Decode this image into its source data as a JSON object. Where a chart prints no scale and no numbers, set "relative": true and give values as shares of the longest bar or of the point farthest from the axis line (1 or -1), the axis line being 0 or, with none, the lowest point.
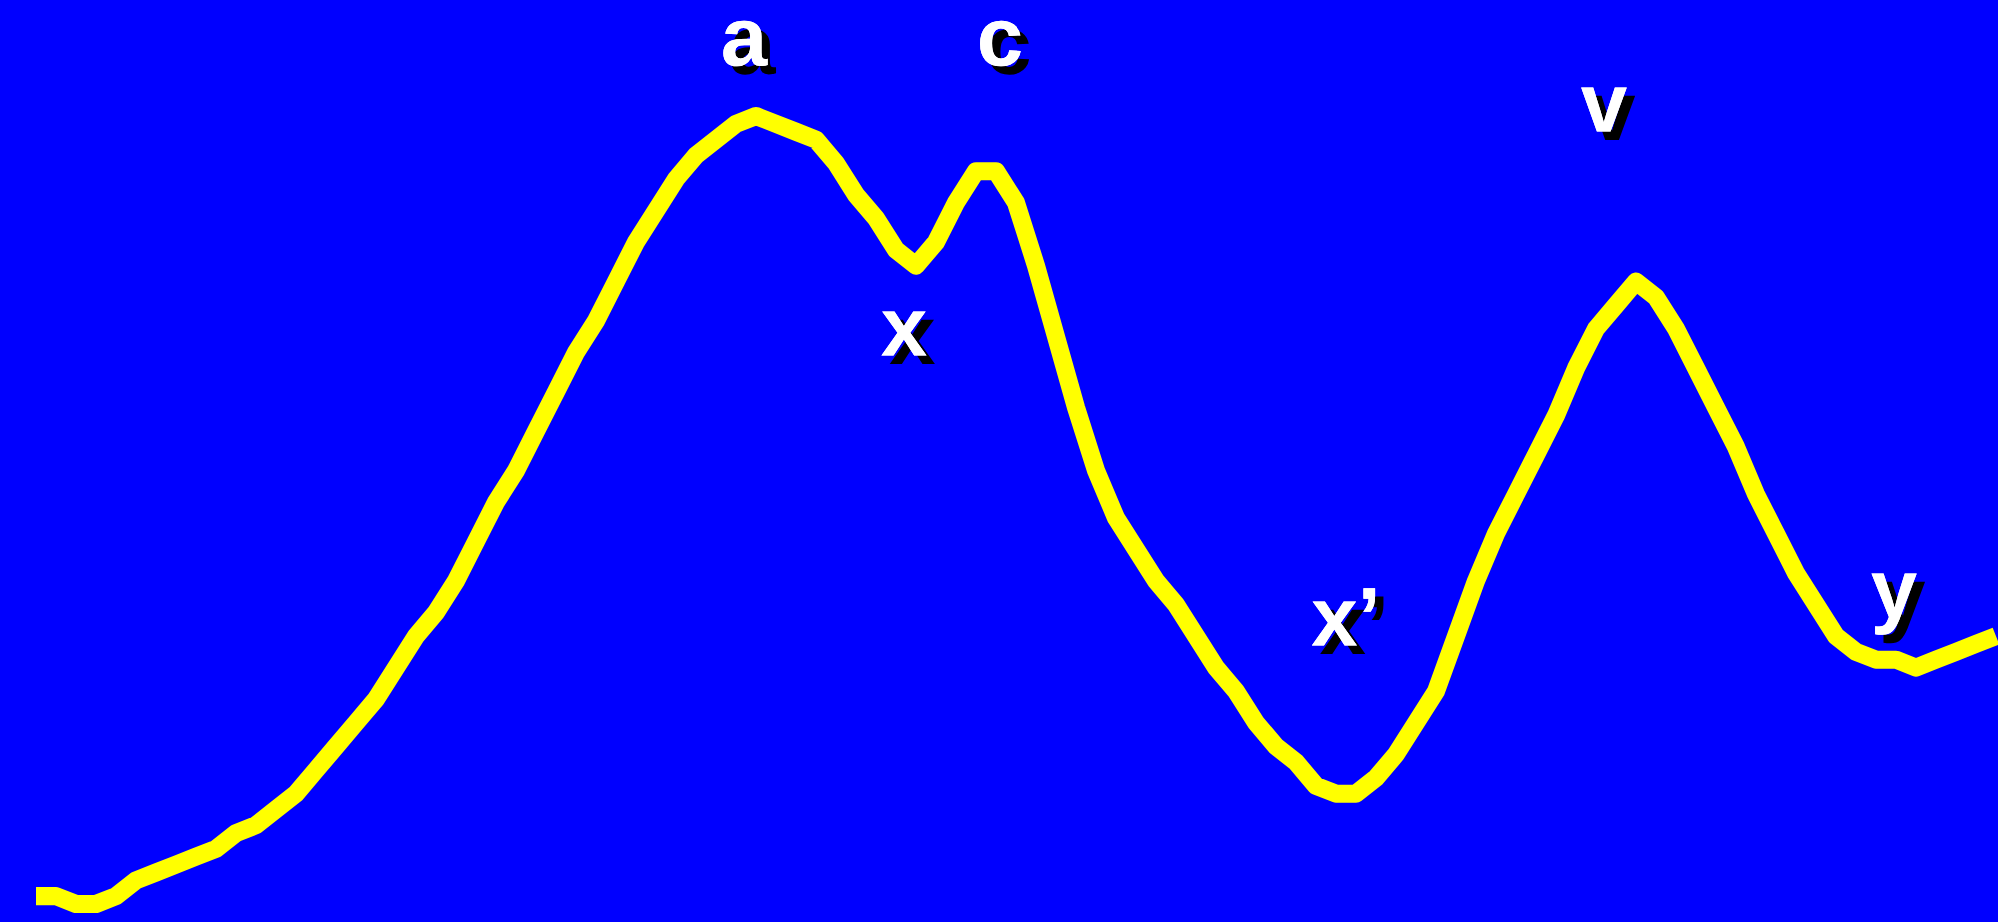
{
  "chart_data": {
    "type": "line",
    "relative": true,
    "categories": [
      null,
      null,
      null,
      null,
      null,
      null,
      null,
      null,
      null,
      null,
      null,
      null,
      null,
      null,
      null,
      null,
      null,
      null,
      null,
      null,
      null,
      null,
      null,
      null,
      null,
      null,
      null,
      null,
      null,
      null,
      null,
      null,
      null,
      null,
      null,
      null,
      null,
      null,
      null,
      null,
      null,
      null,
      null,
      null,
      null,
      null,
      null,
      null,
      null,
      null,
      null,
      null,
      null,
      null,
      null,
      null,
      null,
      null,
      null,
      null,
      null,
      null,
      null,
      null,
      null,
      null,
      null,
      null,
      null,
      null,
      null,
      null,
      null,
      null,
      null,
      null,
      null,
      null,
      null,
      null,
      null,
      null,
      null,
      null,
      null,
      null,
      null,
      null,
      null,
      null,
      null,
      null,
      null,
      null,
      null,
      null,
      null,
      null,
      null
    ],
    "series": [
      {
        "color": "#ffff00",
        "values": [
          0.01,
          0.01,
          0.0,
          0.0,
          0.01,
          0.03,
          0.04,
          0.05,
          0.06,
          0.07,
          0.09,
          0.1,
          0.12,
          0.14,
          0.17,
          0.2,
          0.23,
          0.26,
          0.3,
          0.34,
          0.37,
          0.41,
          0.46,
          0.51,
          0.55,
          0.6,
          0.65,
          0.7,
          0.74,
          0.79,
          0.84,
          0.88,
          0.92,
          0.95,
          0.97,
          0.99,
          1.0,
          0.99,
          0.98,
          0.97,
          0.94,
          0.9,
          0.87,
          0.83,
          0.81,
          0.84,
          0.89,
          0.93,
          0.93,
          0.89,
          0.81,
          0.72,
          0.63,
          0.55,
          0.49,
          0.45,
          0.41,
          0.38,
          0.34,
          0.3,
          0.27,
          0.23,
          0.2,
          0.18,
          0.15,
          0.14,
          0.14,
          0.16,
          0.19,
          0.23,
          0.27,
          0.34,
          0.41,
          0.47,
          0.52,
          0.57,
          0.62,
          0.68,
          0.73,
          0.76,
          0.79,
          0.77,
          0.73,
          0.68,
          0.63,
          0.58,
          0.52,
          0.47,
          0.42,
          0.38,
          0.34,
          0.32,
          0.31,
          0.31,
          0.3,
          0.31,
          0.32,
          0.33,
          0.34
        ]
      }
    ],
    "annotations": [
      "a",
      "c",
      "x",
      "x’",
      "v",
      "y"
    ]
  }
}
